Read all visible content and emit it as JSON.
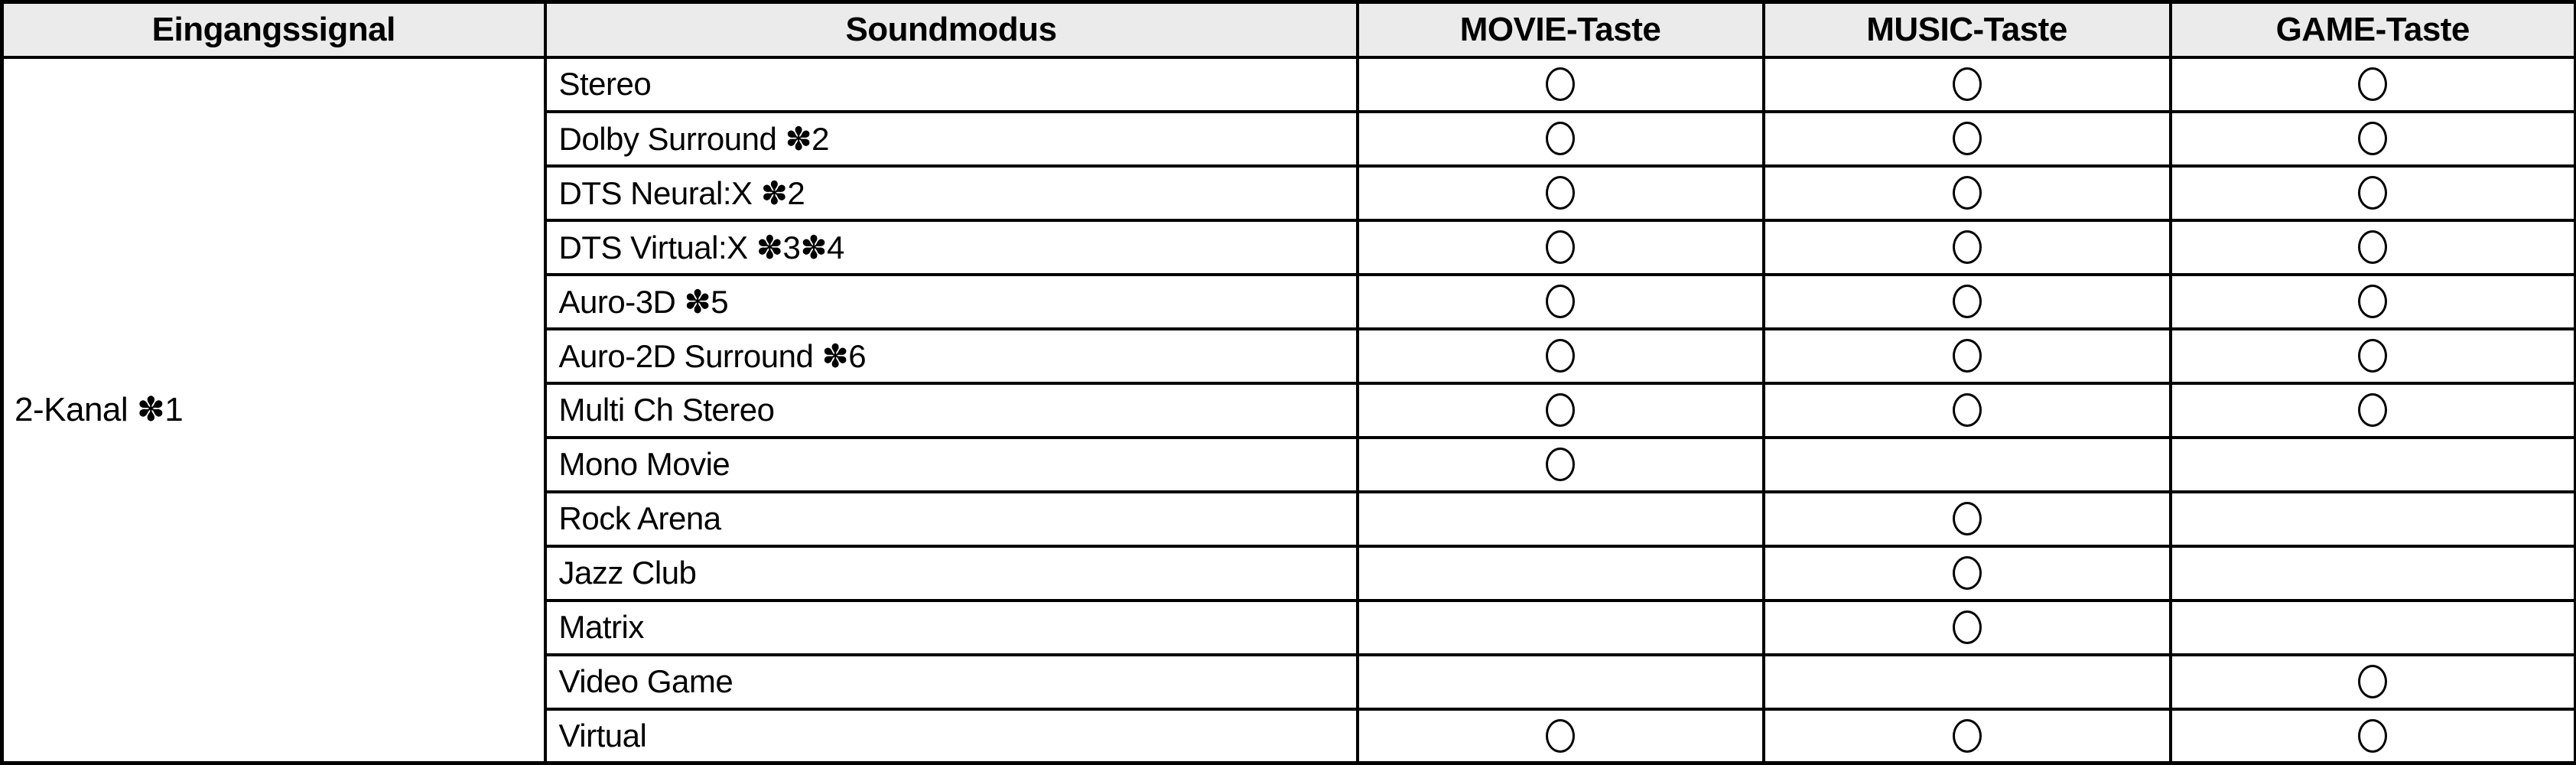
{
  "table": {
    "headers": [
      "Eingangssignal",
      "Soundmodus",
      "MOVIE-Taste",
      "MUSIC-Taste",
      "GAME-Taste"
    ],
    "input_signal": "2-Kanal ✽1",
    "supported_symbol": "circle",
    "colors": {
      "header_bg": "#ebebeb",
      "border": "#000000",
      "text": "#000000",
      "row_bg": "#ffffff"
    },
    "rows": [
      {
        "mode": "Stereo",
        "movie": true,
        "music": true,
        "game": true
      },
      {
        "mode": "Dolby Surround ✽2",
        "movie": true,
        "music": true,
        "game": true
      },
      {
        "mode": "DTS Neural:X ✽2",
        "movie": true,
        "music": true,
        "game": true
      },
      {
        "mode": "DTS Virtual:X ✽3✽4",
        "movie": true,
        "music": true,
        "game": true
      },
      {
        "mode": "Auro-3D ✽5",
        "movie": true,
        "music": true,
        "game": true
      },
      {
        "mode": "Auro-2D Surround ✽6",
        "movie": true,
        "music": true,
        "game": true
      },
      {
        "mode": "Multi Ch Stereo",
        "movie": true,
        "music": true,
        "game": true
      },
      {
        "mode": "Mono Movie",
        "movie": true,
        "music": false,
        "game": false
      },
      {
        "mode": "Rock Arena",
        "movie": false,
        "music": true,
        "game": false
      },
      {
        "mode": "Jazz Club",
        "movie": false,
        "music": true,
        "game": false
      },
      {
        "mode": "Matrix",
        "movie": false,
        "music": true,
        "game": false
      },
      {
        "mode": "Video Game",
        "movie": false,
        "music": false,
        "game": true
      },
      {
        "mode": "Virtual",
        "movie": true,
        "music": true,
        "game": true
      }
    ]
  }
}
